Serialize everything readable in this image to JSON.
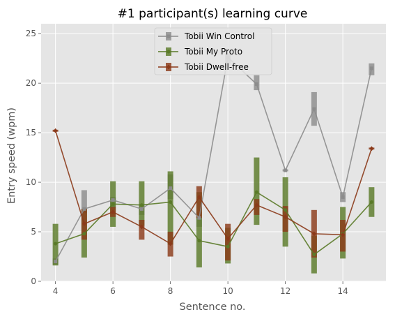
{
  "chart_data": {
    "type": "line",
    "title": "#1 participant(s) learning curve",
    "xlabel": "Sentence no.",
    "ylabel": "Entry speed (wpm)",
    "xlim": [
      3.5,
      15.5
    ],
    "ylim": [
      0,
      26
    ],
    "xticks": [
      4,
      6,
      8,
      10,
      12,
      14
    ],
    "yticks": [
      0,
      5,
      10,
      15,
      20,
      25
    ],
    "grid": true,
    "legend_position": "top-center",
    "background": "#e5e5e5",
    "series": [
      {
        "name": "Tobii Win Control",
        "color": "#8c8c8c",
        "marker": "square",
        "x": [
          4,
          5,
          6,
          7,
          8,
          9,
          10,
          11,
          12,
          13,
          14,
          15
        ],
        "y": [
          2.0,
          7.3,
          8.2,
          7.3,
          9.4,
          6.4,
          22.6,
          19.9,
          11.2,
          17.4,
          8.5,
          21.5
        ],
        "err_low": [
          1.7,
          6.9,
          7.4,
          6.7,
          8.3,
          5.5,
          22.0,
          19.3,
          11.1,
          15.7,
          8.0,
          20.8
        ],
        "err_high": [
          2.3,
          9.2,
          8.5,
          7.8,
          10.8,
          7.0,
          23.0,
          20.8,
          11.3,
          19.1,
          9.0,
          22.0
        ]
      },
      {
        "name": "Tobii My Proto",
        "color": "#5a7a28",
        "marker": "circle",
        "x": [
          4,
          5,
          6,
          7,
          8,
          9,
          10,
          11,
          12,
          13,
          14,
          15
        ],
        "y": [
          3.8,
          4.8,
          7.8,
          7.7,
          8.0,
          4.1,
          3.5,
          9.0,
          7.2,
          2.7,
          4.8,
          8.0
        ],
        "err_low": [
          1.6,
          2.4,
          5.5,
          5.6,
          3.7,
          1.4,
          1.8,
          5.7,
          3.5,
          0.8,
          2.3,
          6.5
        ],
        "err_high": [
          5.8,
          7.3,
          10.1,
          10.1,
          11.1,
          9.0,
          5.4,
          12.5,
          10.5,
          4.6,
          7.5,
          9.5
        ]
      },
      {
        "name": "Tobii Dwell-free",
        "color": "#8b3a1a",
        "marker": "diamond",
        "x": [
          4,
          5,
          6,
          7,
          8,
          9,
          10,
          11,
          12,
          13,
          14,
          15
        ],
        "y": [
          15.2,
          5.8,
          7.0,
          5.5,
          3.8,
          8.5,
          4.3,
          7.7,
          6.5,
          4.8,
          4.7,
          13.4
        ],
        "err_low": [
          15.1,
          4.2,
          6.5,
          4.2,
          2.5,
          6.4,
          2.1,
          6.7,
          5.0,
          2.4,
          3.0,
          13.3
        ],
        "err_high": [
          15.3,
          7.3,
          7.5,
          6.2,
          5.0,
          9.6,
          5.8,
          8.3,
          7.6,
          7.2,
          6.2,
          13.5
        ]
      }
    ]
  }
}
